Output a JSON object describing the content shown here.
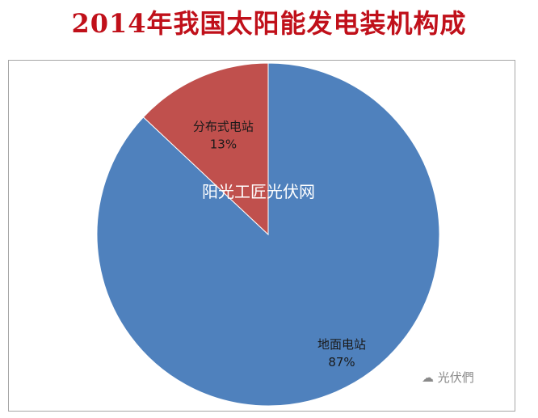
{
  "chart_data": {
    "type": "pie",
    "title": "2014年我国太阳能发电装机构成",
    "slices": [
      {
        "name": "地面电站",
        "value": 87,
        "label": "87%",
        "color": "#4f81bd"
      },
      {
        "name": "分布式电站",
        "value": 13,
        "label": "13%",
        "color": "#c0504d"
      }
    ]
  },
  "watermarks": {
    "center": "阳光工匠光伏网",
    "corner": "光伏們"
  }
}
